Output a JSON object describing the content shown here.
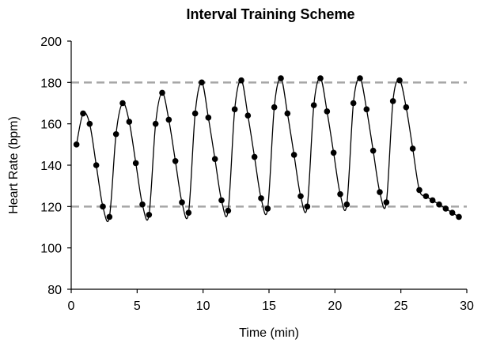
{
  "chart_data": {
    "type": "scatter",
    "title": "Interval Training Scheme",
    "xlabel": "Time (min)",
    "ylabel": "Heart Rate (bpm)",
    "xlim": [
      0,
      30
    ],
    "ylim": [
      80,
      200
    ],
    "xticks": [
      0,
      5,
      10,
      15,
      20,
      25,
      30
    ],
    "yticks": [
      80,
      100,
      120,
      140,
      160,
      180,
      200
    ],
    "grid": false,
    "reference_lines": [
      120,
      180
    ],
    "series": [
      {
        "line": "smooth",
        "marker": "circle",
        "x": [
          0.4,
          0.9,
          1.4,
          1.9,
          2.4,
          2.9,
          3.4,
          3.9,
          4.4,
          4.9,
          5.4,
          5.9,
          6.4,
          6.9,
          7.4,
          7.9,
          8.4,
          8.9,
          9.4,
          9.9,
          10.4,
          10.9,
          11.4,
          11.9,
          12.4,
          12.9,
          13.4,
          13.9,
          14.4,
          14.9,
          15.4,
          15.9,
          16.4,
          16.9,
          17.4,
          17.9,
          18.4,
          18.9,
          19.4,
          19.9,
          20.4,
          20.9,
          21.4,
          21.9,
          22.4,
          22.9,
          23.4,
          23.9,
          24.4,
          24.9,
          25.4,
          25.9,
          26.4,
          26.9,
          27.4,
          27.9,
          28.4,
          28.9,
          29.4
        ],
        "y": [
          150,
          165,
          160,
          140,
          120,
          115,
          155,
          170,
          161,
          141,
          121,
          116,
          160,
          175,
          162,
          142,
          122,
          117,
          165,
          180,
          163,
          143,
          123,
          118,
          167,
          181,
          164,
          144,
          124,
          119,
          168,
          182,
          165,
          145,
          125,
          120,
          169,
          182,
          166,
          146,
          126,
          121,
          170,
          182,
          167,
          147,
          127,
          122,
          171,
          181,
          168,
          148,
          128,
          125,
          123,
          121,
          119,
          117,
          115
        ]
      }
    ]
  }
}
